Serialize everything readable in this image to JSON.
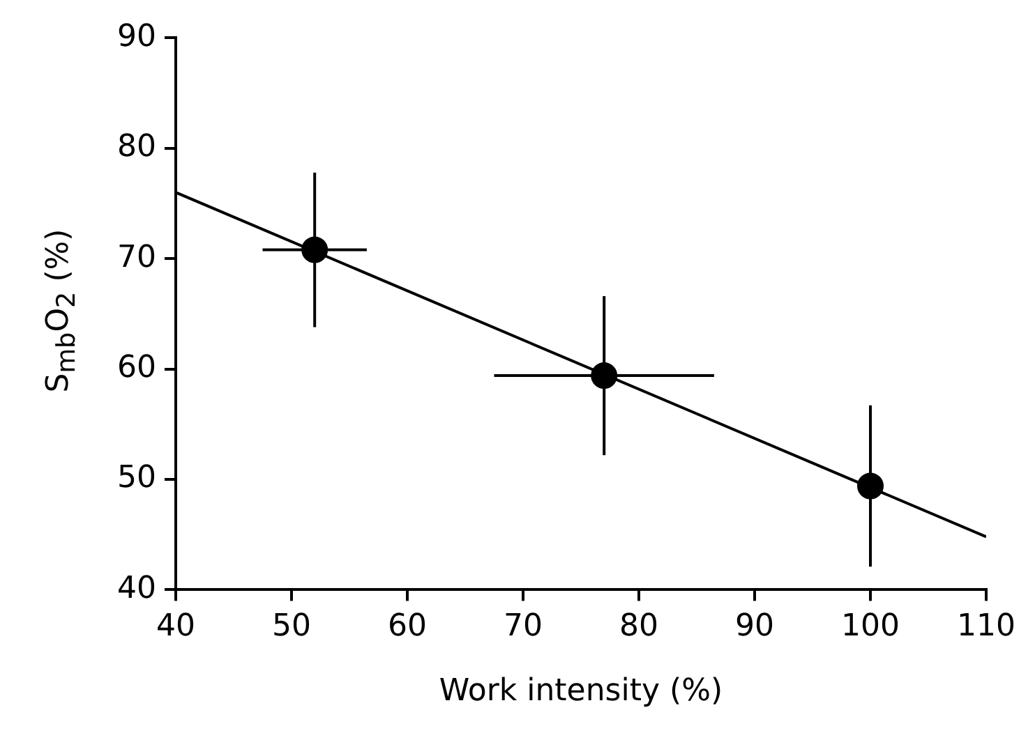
{
  "chart_data": {
    "type": "scatter",
    "xlabel": "Work intensity (%)",
    "ylabel": "S$_{mb}$O$_{2}$ (%)",
    "xlim": [
      40,
      110
    ],
    "xticks": [
      40,
      50,
      60,
      70,
      80,
      90,
      100,
      110
    ],
    "ylim": [
      40,
      90
    ],
    "yticks": [
      40,
      50,
      60,
      70,
      80,
      90
    ],
    "grid": false,
    "legend": false,
    "marker": "circle",
    "series": [
      {
        "color": "#000000",
        "x": [
          52,
          77,
          100
        ],
        "values": [
          70.8,
          59.4,
          49.4
        ],
        "errors": [
          7,
          7.2,
          7.3
        ],
        "xerrors": [
          4.5,
          9.5,
          null
        ]
      },
      {
        "type": "line",
        "color": "#000000",
        "x": [
          40,
          110
        ],
        "values": [
          76,
          44.8
        ],
        "marker": "none"
      }
    ]
  }
}
